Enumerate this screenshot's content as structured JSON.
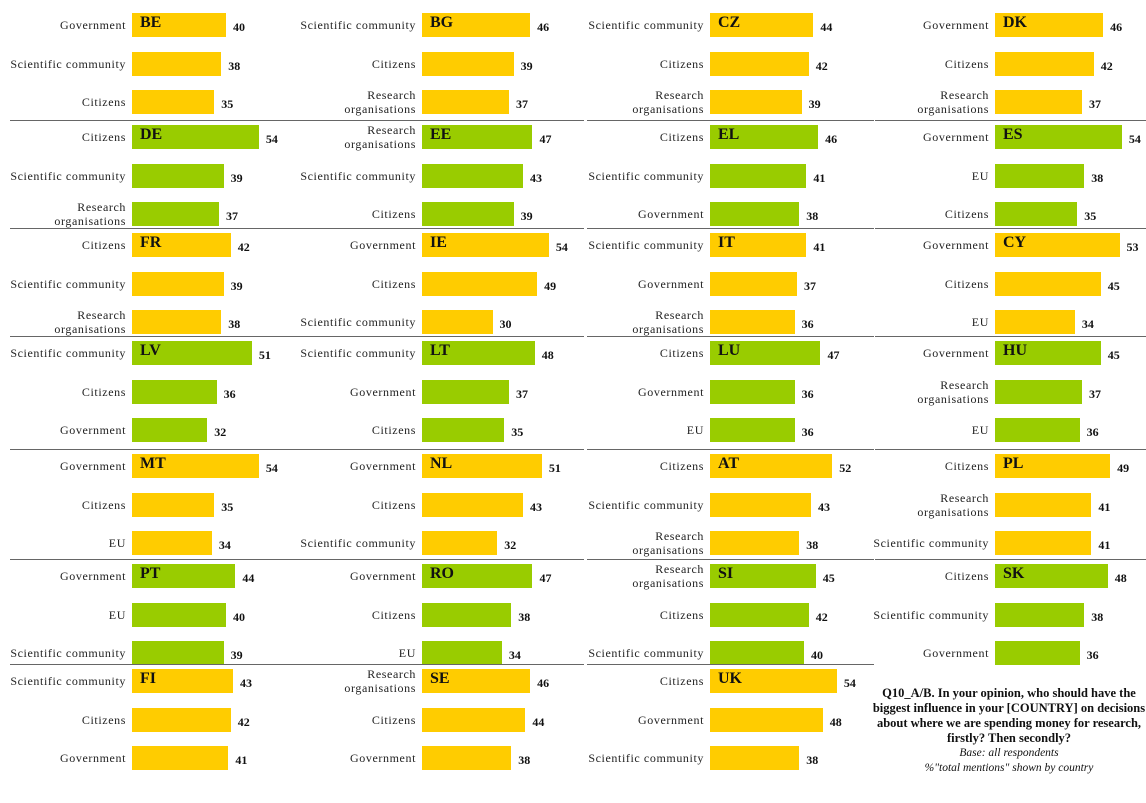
{
  "chart_data": [
    {
      "type": "hbar",
      "title": "BE",
      "color": "#ffcc00",
      "categories": [
        "Government",
        "Scientific community",
        "Citizens"
      ],
      "values": [
        40,
        38,
        35
      ]
    },
    {
      "type": "hbar",
      "title": "BG",
      "color": "#ffcc00",
      "categories": [
        "Scientific community",
        "Citizens",
        "Research organisations"
      ],
      "values": [
        46,
        39,
        37
      ]
    },
    {
      "type": "hbar",
      "title": "CZ",
      "color": "#ffcc00",
      "categories": [
        "Scientific community",
        "Citizens",
        "Research organisations"
      ],
      "values": [
        44,
        42,
        39
      ]
    },
    {
      "type": "hbar",
      "title": "DK",
      "color": "#ffcc00",
      "categories": [
        "Government",
        "Citizens",
        "Research organisations"
      ],
      "values": [
        46,
        42,
        37
      ]
    },
    {
      "type": "hbar",
      "title": "DE",
      "color": "#99cc00",
      "categories": [
        "Citizens",
        "Scientific community",
        "Research organisations"
      ],
      "values": [
        54,
        39,
        37
      ]
    },
    {
      "type": "hbar",
      "title": "EE",
      "color": "#99cc00",
      "categories": [
        "Research organisations",
        "Scientific community",
        "Citizens"
      ],
      "values": [
        47,
        43,
        39
      ]
    },
    {
      "type": "hbar",
      "title": "EL",
      "color": "#99cc00",
      "categories": [
        "Citizens",
        "Scientific community",
        "Government"
      ],
      "values": [
        46,
        41,
        38
      ]
    },
    {
      "type": "hbar",
      "title": "ES",
      "color": "#99cc00",
      "categories": [
        "Government",
        "EU",
        "Citizens"
      ],
      "values": [
        54,
        38,
        35
      ]
    },
    {
      "type": "hbar",
      "title": "FR",
      "color": "#ffcc00",
      "categories": [
        "Citizens",
        "Scientific community",
        "Research organisations"
      ],
      "values": [
        42,
        39,
        38
      ]
    },
    {
      "type": "hbar",
      "title": "IE",
      "color": "#ffcc00",
      "categories": [
        "Government",
        "Citizens",
        "Scientific community"
      ],
      "values": [
        54,
        49,
        30
      ]
    },
    {
      "type": "hbar",
      "title": "IT",
      "color": "#ffcc00",
      "categories": [
        "Scientific community",
        "Government",
        "Research organisations"
      ],
      "values": [
        41,
        37,
        36
      ]
    },
    {
      "type": "hbar",
      "title": "CY",
      "color": "#ffcc00",
      "categories": [
        "Government",
        "Citizens",
        "EU"
      ],
      "values": [
        53,
        45,
        34
      ]
    },
    {
      "type": "hbar",
      "title": "LV",
      "color": "#99cc00",
      "categories": [
        "Scientific community",
        "Citizens",
        "Government"
      ],
      "values": [
        51,
        36,
        32
      ]
    },
    {
      "type": "hbar",
      "title": "LT",
      "color": "#99cc00",
      "categories": [
        "Scientific community",
        "Government",
        "Citizens"
      ],
      "values": [
        48,
        37,
        35
      ]
    },
    {
      "type": "hbar",
      "title": "LU",
      "color": "#99cc00",
      "categories": [
        "Citizens",
        "Government",
        "EU"
      ],
      "values": [
        47,
        36,
        36
      ]
    },
    {
      "type": "hbar",
      "title": "HU",
      "color": "#99cc00",
      "categories": [
        "Government",
        "Research organisations",
        "EU"
      ],
      "values": [
        45,
        37,
        36
      ]
    },
    {
      "type": "hbar",
      "title": "MT",
      "color": "#ffcc00",
      "categories": [
        "Government",
        "Citizens",
        "EU"
      ],
      "values": [
        54,
        35,
        34
      ]
    },
    {
      "type": "hbar",
      "title": "NL",
      "color": "#ffcc00",
      "categories": [
        "Government",
        "Citizens",
        "Scientific community"
      ],
      "values": [
        51,
        43,
        32
      ]
    },
    {
      "type": "hbar",
      "title": "AT",
      "color": "#ffcc00",
      "categories": [
        "Citizens",
        "Scientific community",
        "Research organisations"
      ],
      "values": [
        52,
        43,
        38
      ]
    },
    {
      "type": "hbar",
      "title": "PL",
      "color": "#ffcc00",
      "categories": [
        "Citizens",
        "Research organisations",
        "Scientific community"
      ],
      "values": [
        49,
        41,
        41
      ]
    },
    {
      "type": "hbar",
      "title": "PT",
      "color": "#99cc00",
      "categories": [
        "Government",
        "EU",
        "Scientific community"
      ],
      "values": [
        44,
        40,
        39
      ]
    },
    {
      "type": "hbar",
      "title": "RO",
      "color": "#99cc00",
      "categories": [
        "Government",
        "Citizens",
        "EU"
      ],
      "values": [
        47,
        38,
        34
      ]
    },
    {
      "type": "hbar",
      "title": "SI",
      "color": "#99cc00",
      "categories": [
        "Research organisations",
        "Citizens",
        "Scientific community"
      ],
      "values": [
        45,
        42,
        40
      ]
    },
    {
      "type": "hbar",
      "title": "SK",
      "color": "#99cc00",
      "categories": [
        "Citizens",
        "Scientific community",
        "Government"
      ],
      "values": [
        48,
        38,
        36
      ]
    },
    {
      "type": "hbar",
      "title": "FI",
      "color": "#ffcc00",
      "categories": [
        "Scientific community",
        "Citizens",
        "Government"
      ],
      "values": [
        43,
        42,
        41
      ]
    },
    {
      "type": "hbar",
      "title": "SE",
      "color": "#ffcc00",
      "categories": [
        "Research organisations",
        "Citizens",
        "Government"
      ],
      "values": [
        46,
        44,
        38
      ]
    },
    {
      "type": "hbar",
      "title": "UK",
      "color": "#ffcc00",
      "categories": [
        "Citizens",
        "Government",
        "Scientific community"
      ],
      "values": [
        54,
        48,
        38
      ]
    }
  ],
  "note": {
    "question": "Q10_A/B. In your opinion, who should have the biggest influence in your [COUNTRY] on decisions about where we are spending money for research, firstly? Then secondly?",
    "base": "Base:  all respondents",
    "caption": "%\"total mentions\" shown by country"
  }
}
